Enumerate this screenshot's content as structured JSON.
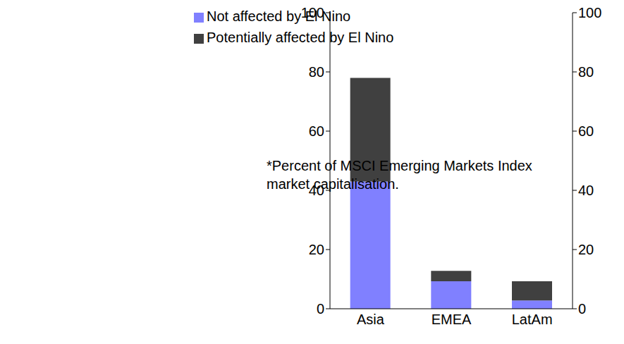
{
  "chart_data": {
    "type": "bar",
    "stacked": true,
    "categories": [
      "Asia",
      "EMEA",
      "LatAm"
    ],
    "series": [
      {
        "name": "Not affected by El Nino",
        "color": "#8080ff",
        "values": [
          43,
          9.3,
          2.8
        ]
      },
      {
        "name": "Potentially affected by El Nino",
        "color": "#404040",
        "values": [
          35,
          3.5,
          6.5
        ]
      }
    ],
    "ylim": [
      0,
      100
    ],
    "yticks": [
      0,
      20,
      40,
      60,
      80,
      100
    ],
    "y2lim": [
      0,
      100
    ],
    "y2ticks": [
      0,
      20,
      40,
      60,
      80,
      100
    ],
    "grid": false,
    "annotation": "*Percent of MSCI Emerging Markets Index market capitalisation."
  }
}
